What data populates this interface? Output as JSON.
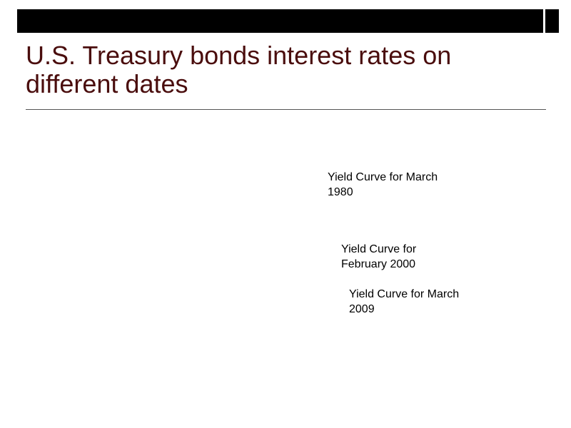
{
  "slide": {
    "title": "U.S. Treasury bonds interest rates on different dates",
    "labels": {
      "march_1980": "Yield Curve for March 1980",
      "february_2000": "Yield Curve for February 2000",
      "march_2009": "Yield Curve for March 2009"
    },
    "colors": {
      "title": "#4a0d0d",
      "top_bar": "#000000",
      "rule": "#555555"
    }
  }
}
